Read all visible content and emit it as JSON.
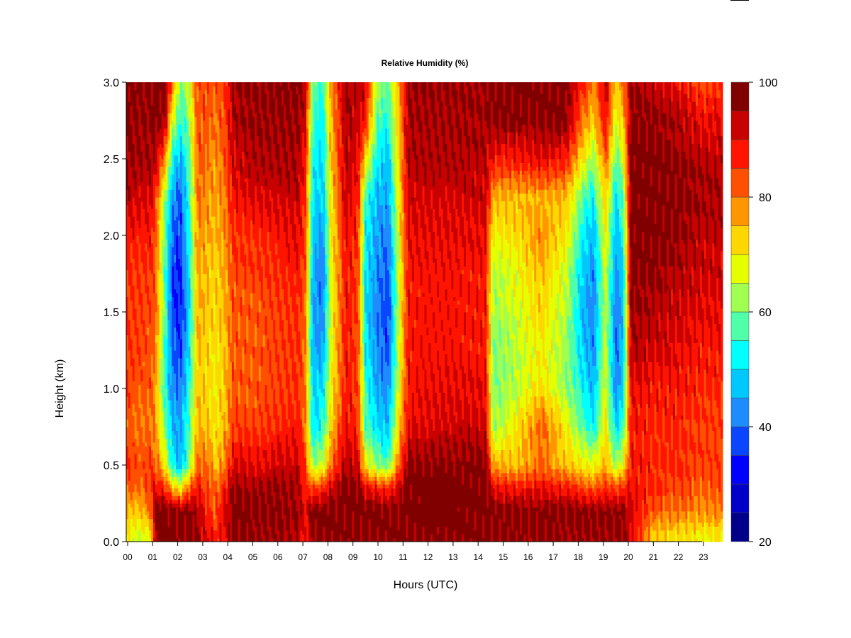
{
  "chart_data": {
    "type": "heatmap",
    "title": "Relative Humidity (%)",
    "xlabel": "Hours (UTC)",
    "ylabel": "Height (km)",
    "xlim": [
      0,
      23.85
    ],
    "ylim": [
      0,
      3.0
    ],
    "x_tick_labels": [
      "00",
      "01",
      "02",
      "03",
      "04",
      "05",
      "06",
      "07",
      "08",
      "09",
      "10",
      "11",
      "12",
      "13",
      "14",
      "15",
      "16",
      "17",
      "18",
      "19",
      "20",
      "21",
      "22",
      "23"
    ],
    "y_tick_labels": [
      "0.0",
      "0.5",
      "1.0",
      "1.5",
      "2.0",
      "2.5",
      "3.0"
    ],
    "colorbar": {
      "range": [
        20,
        100
      ],
      "levels": [
        20,
        25,
        30,
        35,
        40,
        45,
        50,
        55,
        60,
        65,
        70,
        75,
        80,
        85,
        90,
        95,
        100
      ],
      "tick_labels": [
        "20",
        "40",
        "60",
        "80",
        "100"
      ],
      "colors": [
        "#00008B",
        "#0000C8",
        "#0000FF",
        "#0A46FF",
        "#1E8CFF",
        "#00C8FF",
        "#00FFFF",
        "#50FFAA",
        "#A0FF50",
        "#E6FF00",
        "#FFD700",
        "#FF9600",
        "#FF5000",
        "#FF1400",
        "#C80000",
        "#800000"
      ]
    },
    "heights_km": [
      0.05,
      0.2,
      0.35,
      0.5,
      0.75,
      1.0,
      1.25,
      1.5,
      1.75,
      2.0,
      2.25,
      2.5,
      2.75,
      3.0
    ],
    "profiles": [
      {
        "hour": 0.0,
        "rh": [
          68,
          75,
          82,
          85,
          82,
          84,
          85,
          85,
          86,
          88,
          93,
          96,
          97,
          97
        ]
      },
      {
        "hour": 0.5,
        "rh": [
          66,
          74,
          80,
          83,
          80,
          82,
          84,
          84,
          85,
          87,
          92,
          95,
          96,
          97
        ]
      },
      {
        "hour": 0.95,
        "rh": [
          70,
          82,
          86,
          84,
          80,
          82,
          82,
          83,
          85,
          88,
          92,
          95,
          96,
          97
        ]
      },
      {
        "hour": 1.1,
        "rh": [
          97,
          98,
          90,
          82,
          78,
          78,
          80,
          82,
          82,
          83,
          86,
          94,
          97,
          98
        ]
      },
      {
        "hour": 1.5,
        "rh": [
          98,
          99,
          86,
          70,
          60,
          54,
          55,
          58,
          56,
          58,
          62,
          78,
          95,
          98
        ]
      },
      {
        "hour": 1.8,
        "rh": [
          97,
          98,
          75,
          52,
          46,
          42,
          40,
          36,
          36,
          40,
          44,
          52,
          65,
          80
        ]
      },
      {
        "hour": 2.1,
        "rh": [
          96,
          98,
          70,
          46,
          44,
          40,
          36,
          34,
          34,
          36,
          38,
          46,
          55,
          60
        ]
      },
      {
        "hour": 2.4,
        "rh": [
          97,
          98,
          80,
          58,
          55,
          52,
          48,
          46,
          48,
          50,
          52,
          55,
          60,
          65
        ]
      },
      {
        "hour": 2.8,
        "rh": [
          96,
          94,
          88,
          82,
          76,
          74,
          74,
          76,
          76,
          78,
          80,
          82,
          82,
          84
        ]
      },
      {
        "hour": 3.2,
        "rh": [
          90,
          86,
          84,
          80,
          74,
          72,
          72,
          74,
          74,
          76,
          78,
          80,
          82,
          84
        ]
      },
      {
        "hour": 3.5,
        "rh": [
          86,
          82,
          80,
          74,
          70,
          70,
          70,
          72,
          72,
          74,
          76,
          78,
          80,
          82
        ]
      },
      {
        "hour": 3.9,
        "rh": [
          90,
          92,
          88,
          80,
          76,
          74,
          74,
          76,
          76,
          78,
          80,
          82,
          84,
          86
        ]
      },
      {
        "hour": 4.2,
        "rh": [
          97,
          98,
          96,
          90,
          84,
          82,
          82,
          82,
          84,
          86,
          88,
          92,
          94,
          96
        ]
      },
      {
        "hour": 5.0,
        "rh": [
          96,
          97,
          96,
          90,
          84,
          82,
          82,
          82,
          84,
          86,
          90,
          94,
          96,
          96
        ]
      },
      {
        "hour": 6.0,
        "rh": [
          96,
          97,
          96,
          92,
          86,
          84,
          84,
          84,
          86,
          88,
          92,
          95,
          96,
          97
        ]
      },
      {
        "hour": 6.8,
        "rh": [
          94,
          96,
          95,
          92,
          88,
          86,
          86,
          86,
          88,
          90,
          93,
          95,
          96,
          97
        ]
      },
      {
        "hour": 7.1,
        "rh": [
          88,
          90,
          86,
          84,
          80,
          80,
          80,
          80,
          82,
          84,
          86,
          88,
          92,
          94
        ]
      },
      {
        "hour": 7.4,
        "rh": [
          96,
          98,
          84,
          62,
          50,
          48,
          45,
          44,
          46,
          48,
          50,
          52,
          55,
          60
        ]
      },
      {
        "hour": 7.8,
        "rh": [
          97,
          98,
          86,
          66,
          54,
          50,
          44,
          42,
          40,
          44,
          48,
          50,
          52,
          56
        ]
      },
      {
        "hour": 8.1,
        "rh": [
          97,
          98,
          92,
          80,
          72,
          68,
          66,
          66,
          66,
          68,
          70,
          72,
          74,
          76
        ]
      },
      {
        "hour": 8.7,
        "rh": [
          97,
          98,
          97,
          94,
          90,
          88,
          88,
          88,
          88,
          90,
          92,
          94,
          95,
          96
        ]
      },
      {
        "hour": 9.2,
        "rh": [
          96,
          98,
          97,
          92,
          86,
          84,
          84,
          84,
          84,
          86,
          88,
          90,
          92,
          94
        ]
      },
      {
        "hour": 9.5,
        "rh": [
          96,
          98,
          90,
          70,
          58,
          56,
          52,
          50,
          50,
          52,
          56,
          72,
          88,
          92
        ]
      },
      {
        "hour": 10.0,
        "rh": [
          97,
          98,
          88,
          60,
          50,
          44,
          42,
          40,
          42,
          44,
          46,
          50,
          56,
          62
        ]
      },
      {
        "hour": 10.4,
        "rh": [
          97,
          98,
          86,
          58,
          46,
          42,
          38,
          36,
          38,
          40,
          44,
          48,
          54,
          60
        ]
      },
      {
        "hour": 10.8,
        "rh": [
          97,
          98,
          92,
          80,
          70,
          66,
          64,
          64,
          64,
          66,
          68,
          70,
          72,
          74
        ]
      },
      {
        "hour": 11.2,
        "rh": [
          97,
          98,
          98,
          96,
          90,
          88,
          88,
          88,
          88,
          90,
          92,
          94,
          95,
          96
        ]
      },
      {
        "hour": 12.5,
        "rh": [
          97,
          98,
          98,
          97,
          92,
          90,
          88,
          88,
          88,
          90,
          92,
          94,
          95,
          96
        ]
      },
      {
        "hour": 14.3,
        "rh": [
          97,
          98,
          98,
          97,
          92,
          90,
          88,
          88,
          88,
          90,
          92,
          94,
          95,
          96
        ]
      },
      {
        "hour": 14.6,
        "rh": [
          96,
          97,
          90,
          76,
          62,
          60,
          60,
          62,
          64,
          68,
          76,
          88,
          96,
          98
        ]
      },
      {
        "hour": 15.5,
        "rh": [
          96,
          97,
          88,
          74,
          70,
          64,
          64,
          66,
          68,
          72,
          74,
          88,
          97,
          98
        ]
      },
      {
        "hour": 16.5,
        "rh": [
          96,
          97,
          90,
          80,
          82,
          72,
          70,
          72,
          74,
          78,
          76,
          90,
          97,
          98
        ]
      },
      {
        "hour": 17.5,
        "rh": [
          96,
          97,
          88,
          74,
          70,
          62,
          62,
          64,
          66,
          70,
          74,
          88,
          97,
          98
        ]
      },
      {
        "hour": 18.2,
        "rh": [
          96,
          97,
          84,
          70,
          58,
          52,
          48,
          46,
          48,
          52,
          58,
          70,
          80,
          86
        ]
      },
      {
        "hour": 18.6,
        "rh": [
          96,
          97,
          82,
          68,
          52,
          46,
          42,
          42,
          42,
          46,
          52,
          62,
          72,
          80
        ]
      },
      {
        "hour": 19.1,
        "rh": [
          96,
          97,
          86,
          76,
          70,
          68,
          66,
          66,
          66,
          70,
          74,
          82,
          90,
          94
        ]
      },
      {
        "hour": 19.5,
        "rh": [
          96,
          97,
          84,
          62,
          50,
          42,
          40,
          40,
          42,
          46,
          50,
          58,
          66,
          72
        ]
      },
      {
        "hour": 19.8,
        "rh": [
          96,
          97,
          86,
          70,
          56,
          50,
          48,
          48,
          50,
          54,
          58,
          66,
          74,
          80
        ]
      },
      {
        "hour": 20.1,
        "rh": [
          90,
          92,
          90,
          88,
          88,
          90,
          94,
          96,
          97,
          98,
          98,
          98,
          97,
          96
        ]
      },
      {
        "hour": 21.0,
        "rh": [
          74,
          82,
          86,
          86,
          86,
          88,
          92,
          94,
          96,
          98,
          98,
          98,
          96,
          92
        ]
      },
      {
        "hour": 22.0,
        "rh": [
          72,
          80,
          84,
          86,
          86,
          88,
          90,
          92,
          94,
          96,
          97,
          96,
          94,
          88
        ]
      },
      {
        "hour": 23.0,
        "rh": [
          70,
          78,
          82,
          84,
          84,
          86,
          88,
          90,
          92,
          93,
          95,
          94,
          90,
          84
        ]
      },
      {
        "hour": 23.85,
        "rh": [
          72,
          80,
          84,
          84,
          84,
          86,
          88,
          90,
          92,
          93,
          95,
          94,
          90,
          84
        ]
      }
    ]
  }
}
